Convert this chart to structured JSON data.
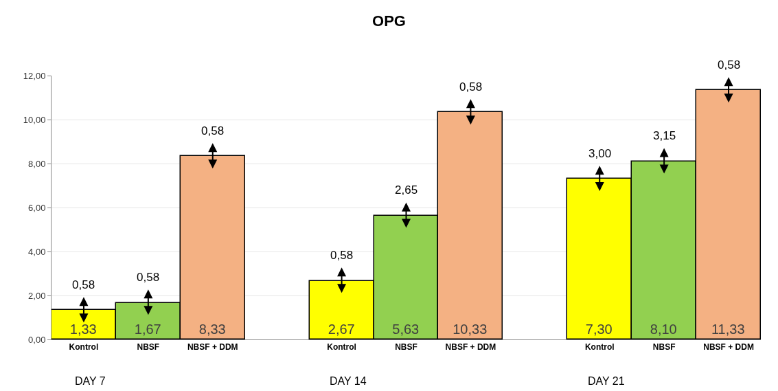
{
  "chart_data": {
    "type": "bar",
    "title": "OPG",
    "categories": [
      "Kontrol",
      "NBSF",
      "NBSF + DDM",
      null,
      "Kontrol",
      "NBSF",
      "NBSF + DDM",
      null,
      "Kontrol",
      "NBSF",
      "NBSF + DDM"
    ],
    "values": [
      1.33,
      1.67,
      8.33,
      null,
      2.67,
      5.63,
      10.33,
      null,
      7.3,
      8.1,
      11.33
    ],
    "colors": [
      "#ffff00",
      "#92d050",
      "#f4b183",
      null,
      "#ffff00",
      "#92d050",
      "#f4b183",
      null,
      "#ffff00",
      "#92d050",
      "#f4b183"
    ],
    "value_labels": [
      "1,33",
      "1,67",
      "8,33",
      null,
      "2,67",
      "5,63",
      "10,33",
      null,
      "7,30",
      "8,10",
      "11,33"
    ],
    "ylim": [
      0,
      12
    ],
    "yticks": [
      {
        "value": 0,
        "label": "0,00"
      },
      {
        "value": 2,
        "label": "2,00"
      },
      {
        "value": 4,
        "label": "4,00"
      },
      {
        "value": 6,
        "label": "6,00"
      },
      {
        "value": 8,
        "label": "8,00"
      },
      {
        "value": 10,
        "label": "10,00"
      },
      {
        "value": 12,
        "label": "12,00"
      }
    ],
    "grid": "y",
    "annotations": [
      {
        "text": "0,58",
        "y": 1.33
      },
      {
        "text": "0,58",
        "y": 1.67
      },
      {
        "text": "0,58",
        "y": 8.33
      },
      {
        "text": "0,58",
        "y": 2.67
      },
      {
        "text": "2,65",
        "y": 5.63
      },
      {
        "text": "0,58",
        "y": 10.33
      },
      {
        "text": "3,00",
        "y": 7.3
      },
      {
        "text": "3,15",
        "y": 8.1
      },
      {
        "text": "0,58",
        "y": 11.33
      },
      "DAY 7",
      "DAY 14",
      "DAY 21"
    ]
  }
}
